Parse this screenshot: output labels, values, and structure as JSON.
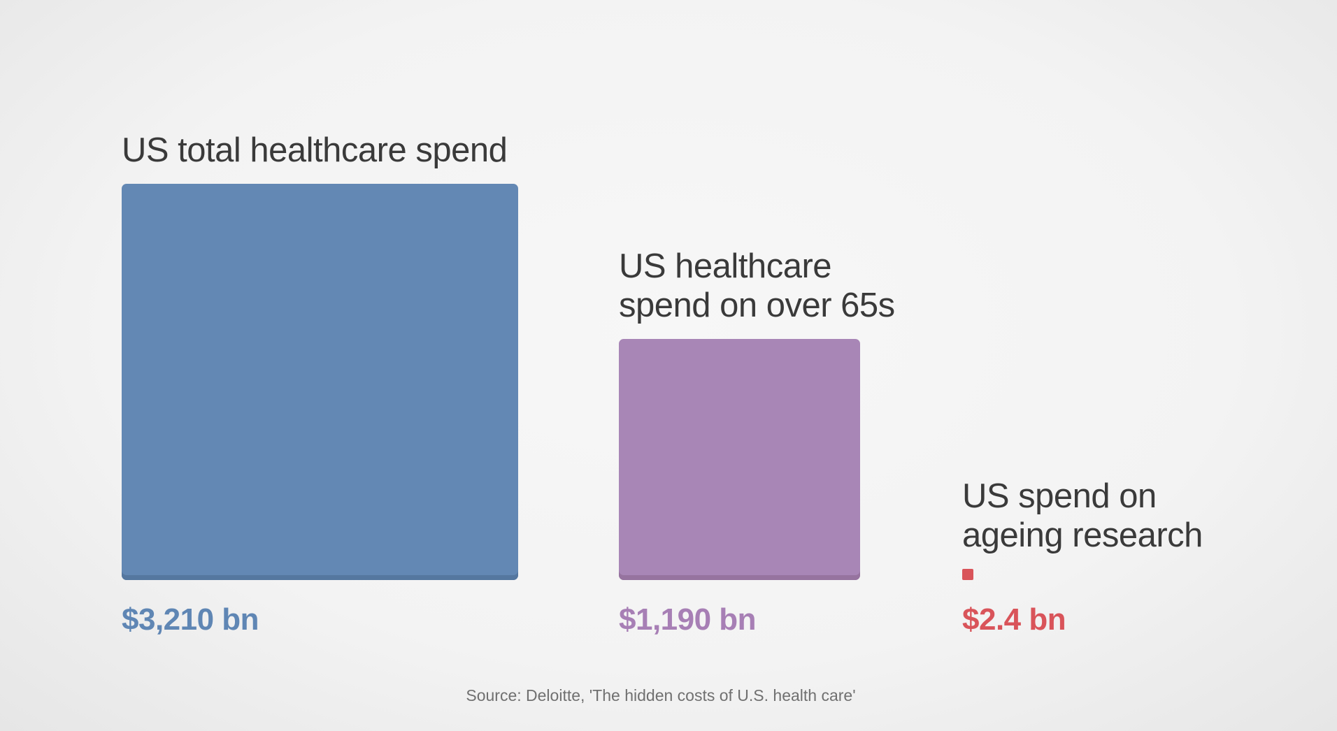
{
  "chart_data": {
    "type": "area-square",
    "title": "",
    "unit": "bn",
    "currency": "$",
    "series": [
      {
        "name": "US total healthcare spend",
        "label_lines": [
          "US total healthcare spend"
        ],
        "value": 3210,
        "value_label": "$3,210 bn",
        "color": "#6388b4",
        "edge_color": "#55779f",
        "text_color": "#5f86b4"
      },
      {
        "name": "US healthcare spend on over 65s",
        "label_lines": [
          "US healthcare",
          "spend on over 65s"
        ],
        "value": 1190,
        "value_label": "$1,190 bn",
        "color": "#a886b6",
        "edge_color": "#96739f",
        "text_color": "#a77fb5"
      },
      {
        "name": "US spend on ageing research",
        "label_lines": [
          "US spend on",
          "ageing research"
        ],
        "value": 2.4,
        "value_label": "$2.4 bn",
        "color": "#d9545a",
        "edge_color": "#c44a4f",
        "text_color": "#d9545a"
      }
    ],
    "source": "Source: Deloitte, 'The hidden costs of U.S. health care'"
  }
}
